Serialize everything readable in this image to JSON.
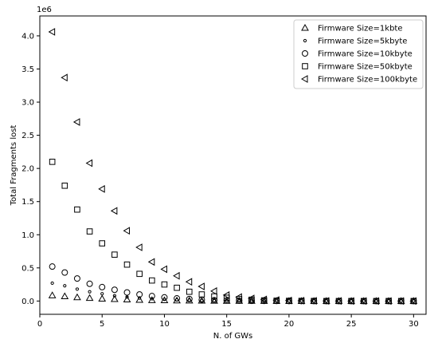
{
  "chart_data": {
    "type": "scatter",
    "title": "",
    "xlabel": "N. of GWs",
    "ylabel": "Total Fragments lost",
    "y_offset_label": "1e6",
    "xlim": [
      0,
      31
    ],
    "ylim": [
      -0.2,
      4.3
    ],
    "x_ticks": [
      0,
      5,
      10,
      15,
      20,
      25,
      30
    ],
    "y_ticks": [
      0.0,
      0.5,
      1.0,
      1.5,
      2.0,
      2.5,
      3.0,
      3.5,
      4.0
    ],
    "y_unit_multiplier": 1000000,
    "grid": false,
    "legend_position": "top-right",
    "x": [
      1,
      2,
      3,
      4,
      5,
      6,
      7,
      8,
      9,
      10,
      11,
      12,
      13,
      14,
      15,
      16,
      17,
      18,
      19,
      20,
      21,
      22,
      23,
      24,
      25,
      26,
      27,
      28,
      29,
      30
    ],
    "series": [
      {
        "name": "Firmware Size=1kbte",
        "marker": "triangle-up",
        "values": [
          0.085,
          0.07,
          0.055,
          0.045,
          0.035,
          0.028,
          0.022,
          0.016,
          0.012,
          0.01,
          0.008,
          0.006,
          0.004,
          0.003,
          0.002,
          0.001,
          0.001,
          0.0,
          0.0,
          0.0,
          0.0,
          0.0,
          0.0,
          0.0,
          0.0,
          0.0,
          0.0,
          0.0,
          0.0,
          0.0
        ]
      },
      {
        "name": "Firmware Size=5kbyte",
        "marker": "small-circle",
        "values": [
          0.27,
          0.23,
          0.18,
          0.14,
          0.11,
          0.08,
          0.06,
          0.045,
          0.035,
          0.025,
          0.018,
          0.012,
          0.008,
          0.005,
          0.003,
          0.002,
          0.001,
          0.0,
          0.0,
          0.0,
          0.0,
          0.0,
          0.0,
          0.0,
          0.0,
          0.0,
          0.0,
          0.0,
          0.0,
          0.0
        ]
      },
      {
        "name": "Firmware Size=10kbyte",
        "marker": "circle",
        "values": [
          0.52,
          0.43,
          0.34,
          0.26,
          0.21,
          0.17,
          0.13,
          0.1,
          0.075,
          0.055,
          0.04,
          0.03,
          0.02,
          0.012,
          0.008,
          0.005,
          0.003,
          0.002,
          0.001,
          0.0,
          0.0,
          0.0,
          0.0,
          0.0,
          0.0,
          0.0,
          0.0,
          0.0,
          0.0,
          0.0
        ]
      },
      {
        "name": "Firmware Size=50kbyte",
        "marker": "square",
        "values": [
          2.1,
          1.74,
          1.38,
          1.05,
          0.87,
          0.7,
          0.55,
          0.41,
          0.31,
          0.25,
          0.2,
          0.14,
          0.1,
          0.07,
          0.05,
          0.03,
          0.02,
          0.01,
          0.005,
          0.003,
          0.002,
          0.001,
          0.0,
          0.0,
          0.0,
          0.0,
          0.0,
          0.0,
          0.0,
          0.0
        ]
      },
      {
        "name": "Firmware Size=100kbyte",
        "marker": "triangle-left",
        "values": [
          4.06,
          3.37,
          2.7,
          2.08,
          1.69,
          1.36,
          1.06,
          0.81,
          0.59,
          0.48,
          0.38,
          0.29,
          0.22,
          0.15,
          0.09,
          0.06,
          0.04,
          0.025,
          0.015,
          0.008,
          0.005,
          0.003,
          0.002,
          0.001,
          0.0,
          0.0,
          0.0,
          0.0,
          0.0,
          0.0
        ]
      }
    ]
  }
}
